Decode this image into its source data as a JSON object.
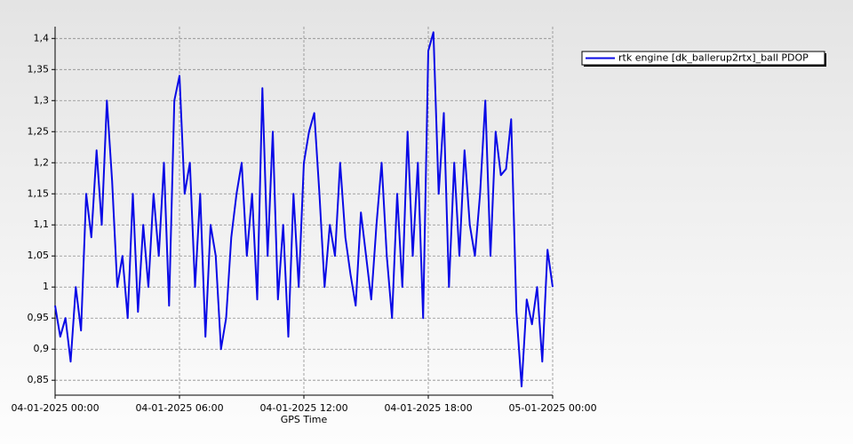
{
  "chart_data": {
    "type": "line",
    "x_label": "GPS Time",
    "x": [
      "04-01-2025 00:00",
      "04-01-2025 00:15",
      "04-01-2025 00:30",
      "04-01-2025 00:45",
      "04-01-2025 01:00",
      "04-01-2025 01:15",
      "04-01-2025 01:30",
      "04-01-2025 01:45",
      "04-01-2025 02:00",
      "04-01-2025 02:15",
      "04-01-2025 02:30",
      "04-01-2025 02:45",
      "04-01-2025 03:00",
      "04-01-2025 03:15",
      "04-01-2025 03:30",
      "04-01-2025 03:45",
      "04-01-2025 04:00",
      "04-01-2025 04:15",
      "04-01-2025 04:30",
      "04-01-2025 04:45",
      "04-01-2025 05:00",
      "04-01-2025 05:15",
      "04-01-2025 05:30",
      "04-01-2025 05:45",
      "04-01-2025 06:00",
      "04-01-2025 06:15",
      "04-01-2025 06:30",
      "04-01-2025 06:45",
      "04-01-2025 07:00",
      "04-01-2025 07:15",
      "04-01-2025 07:30",
      "04-01-2025 07:45",
      "04-01-2025 08:00",
      "04-01-2025 08:15",
      "04-01-2025 08:30",
      "04-01-2025 08:45",
      "04-01-2025 09:00",
      "04-01-2025 09:15",
      "04-01-2025 09:30",
      "04-01-2025 09:45",
      "04-01-2025 10:00",
      "04-01-2025 10:15",
      "04-01-2025 10:30",
      "04-01-2025 10:45",
      "04-01-2025 11:00",
      "04-01-2025 11:15",
      "04-01-2025 11:30",
      "04-01-2025 11:45",
      "04-01-2025 12:00",
      "04-01-2025 12:15",
      "04-01-2025 12:30",
      "04-01-2025 12:45",
      "04-01-2025 13:00",
      "04-01-2025 13:15",
      "04-01-2025 13:30",
      "04-01-2025 13:45",
      "04-01-2025 14:00",
      "04-01-2025 14:15",
      "04-01-2025 14:30",
      "04-01-2025 14:45",
      "04-01-2025 15:00",
      "04-01-2025 15:15",
      "04-01-2025 15:30",
      "04-01-2025 15:45",
      "04-01-2025 16:00",
      "04-01-2025 16:15",
      "04-01-2025 16:30",
      "04-01-2025 16:45",
      "04-01-2025 17:00",
      "04-01-2025 17:15",
      "04-01-2025 17:30",
      "04-01-2025 17:45",
      "04-01-2025 18:00",
      "04-01-2025 18:15",
      "04-01-2025 18:30",
      "04-01-2025 18:45",
      "04-01-2025 19:00",
      "04-01-2025 19:15",
      "04-01-2025 19:30",
      "04-01-2025 19:45",
      "04-01-2025 20:00",
      "04-01-2025 20:15",
      "04-01-2025 20:30",
      "04-01-2025 20:45",
      "04-01-2025 21:00",
      "04-01-2025 21:15",
      "04-01-2025 21:30",
      "04-01-2025 21:45",
      "04-01-2025 22:00",
      "04-01-2025 22:15",
      "04-01-2025 22:30",
      "04-01-2025 22:45",
      "04-01-2025 23:00",
      "04-01-2025 23:15",
      "04-01-2025 23:30",
      "04-01-2025 23:45",
      "05-01-2025 00:00"
    ],
    "series": [
      {
        "name": "rtk engine [dk_ballerup2rtx]_ball PDOP",
        "color": "#0a0ae6",
        "values": [
          0.97,
          0.92,
          0.95,
          0.88,
          1.0,
          0.93,
          1.15,
          1.08,
          1.22,
          1.1,
          1.3,
          1.17,
          1.0,
          1.05,
          0.95,
          1.15,
          0.96,
          1.1,
          1.0,
          1.15,
          1.05,
          1.2,
          0.97,
          1.3,
          1.34,
          1.15,
          1.2,
          1.0,
          1.15,
          0.92,
          1.1,
          1.05,
          0.9,
          0.95,
          1.08,
          1.15,
          1.2,
          1.05,
          1.15,
          0.98,
          1.32,
          1.05,
          1.25,
          0.98,
          1.1,
          0.92,
          1.15,
          1.0,
          1.2,
          1.25,
          1.28,
          1.15,
          1.0,
          1.1,
          1.05,
          1.2,
          1.08,
          1.02,
          0.97,
          1.12,
          1.05,
          0.98,
          1.1,
          1.2,
          1.05,
          0.95,
          1.15,
          1.0,
          1.25,
          1.05,
          1.2,
          0.95,
          1.38,
          1.41,
          1.15,
          1.28,
          1.0,
          1.2,
          1.05,
          1.22,
          1.1,
          1.05,
          1.15,
          1.3,
          1.05,
          1.25,
          1.18,
          1.19,
          1.27,
          0.96,
          0.84,
          0.98,
          0.94,
          1.0,
          0.88,
          1.06,
          1.0
        ]
      }
    ],
    "xlim": [
      "04-01-2025 00:00",
      "05-01-2025 00:00"
    ],
    "xticks": [
      "04-01-2025 00:00",
      "04-01-2025 06:00",
      "04-01-2025 12:00",
      "04-01-2025 18:00",
      "05-01-2025 00:00"
    ],
    "ylim": [
      0.826,
      1.419
    ],
    "yticks": [
      {
        "value": 0.85,
        "label": "0,85"
      },
      {
        "value": 0.9,
        "label": "0,9"
      },
      {
        "value": 0.95,
        "label": "0,95"
      },
      1,
      {
        "value": 1.05,
        "label": "1,05"
      },
      {
        "value": 1.1,
        "label": "1,1"
      },
      {
        "value": 1.15,
        "label": "1,15"
      },
      {
        "value": 1.2,
        "label": "1,2"
      },
      {
        "value": 1.25,
        "label": "1,25"
      },
      {
        "value": 1.3,
        "label": "1,3"
      },
      {
        "value": 1.35,
        "label": "1,35"
      },
      {
        "value": 1.4,
        "label": "1,4"
      }
    ],
    "grid": true,
    "legend": "top-right"
  }
}
